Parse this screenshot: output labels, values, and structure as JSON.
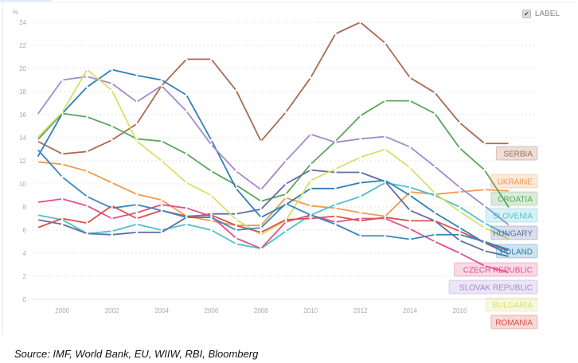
{
  "legend_toggle": {
    "label": "LABEL",
    "checked": true
  },
  "source": "Source: IMF, World Bank, EU, WIIW, RBI, Bloomberg",
  "chart_data": {
    "type": "line",
    "ylabel": "%",
    "ylim": [
      0,
      24
    ],
    "yticks": [
      0,
      2,
      4,
      6,
      8,
      10,
      12,
      14,
      16,
      18,
      20,
      22,
      24
    ],
    "xticks": [
      2000,
      2002,
      2004,
      2006,
      2008,
      2010,
      2012,
      2014,
      2016
    ],
    "grid": true,
    "legend": "right, labels at line ends",
    "x": [
      1999,
      2000,
      2001,
      2002,
      2003,
      2004,
      2005,
      2006,
      2007,
      2008,
      2009,
      2010,
      2011,
      2012,
      2013,
      2014,
      2015,
      2016,
      2017,
      2018
    ],
    "series": [
      {
        "name": "SERBIA",
        "color": "#a86b52",
        "values": [
          13.7,
          12.6,
          12.8,
          13.8,
          15.2,
          18.5,
          20.8,
          20.8,
          18.1,
          13.7,
          16.2,
          19.2,
          23.0,
          24.0,
          22.2,
          19.2,
          17.9,
          15.3,
          13.5,
          13.5
        ]
      },
      {
        "name": "UKRAINE",
        "color": "#f19a4e",
        "values": [
          11.9,
          11.7,
          11.1,
          10.1,
          9.1,
          8.6,
          7.2,
          6.8,
          6.4,
          6.4,
          8.8,
          8.1,
          7.9,
          7.5,
          7.2,
          9.3,
          9.1,
          9.3,
          9.5,
          9.4
        ]
      },
      {
        "name": "CROATIA",
        "color": "#5aa65a",
        "values": [
          13.8,
          16.1,
          15.8,
          15.0,
          13.9,
          13.7,
          12.6,
          11.1,
          9.9,
          8.5,
          9.1,
          11.7,
          13.7,
          15.9,
          17.2,
          17.2,
          16.1,
          13.1,
          11.2,
          7.9
        ]
      },
      {
        "name": "SLOVENIA",
        "color": "#4cc1cc",
        "values": [
          7.3,
          6.9,
          5.7,
          5.9,
          6.5,
          6.0,
          6.5,
          6.0,
          4.8,
          4.4,
          5.9,
          7.3,
          8.2,
          8.9,
          10.1,
          9.7,
          9.0,
          8.0,
          6.6,
          5.5
        ]
      },
      {
        "name": "HUNGARY",
        "color": "#5c6ea6",
        "values": [
          6.9,
          6.5,
          5.7,
          5.6,
          5.8,
          5.8,
          7.1,
          7.4,
          7.4,
          7.8,
          10.0,
          11.2,
          11.0,
          11.0,
          10.2,
          7.7,
          6.8,
          5.1,
          4.2,
          3.7
        ]
      },
      {
        "name": "POLAND",
        "color": "#2f7fb8",
        "values": [
          12.3,
          16.1,
          18.4,
          19.9,
          19.4,
          19.0,
          17.7,
          13.8,
          9.6,
          7.1,
          8.2,
          9.6,
          9.6,
          10.1,
          10.3,
          9.0,
          7.5,
          6.2,
          4.9,
          3.9
        ]
      },
      {
        "name": "CZECH REPUBLIC",
        "color": "#e2508a",
        "values": [
          8.4,
          8.7,
          8.1,
          7.0,
          7.5,
          8.2,
          7.9,
          7.2,
          5.3,
          4.4,
          6.7,
          7.3,
          6.7,
          7.0,
          7.0,
          6.1,
          5.0,
          4.0,
          2.9,
          2.3
        ]
      },
      {
        "name": "SLOVAK REPUBLIC",
        "color": "#a48ad0",
        "values": [
          16.0,
          19.0,
          19.3,
          18.7,
          17.1,
          18.5,
          16.3,
          13.4,
          11.1,
          9.5,
          12.0,
          14.3,
          13.6,
          13.9,
          14.1,
          13.2,
          11.5,
          9.7,
          8.1,
          6.4
        ]
      },
      {
        "name": "BULGARIA",
        "color": "#d9df6a",
        "values": [
          14.0,
          16.2,
          19.9,
          18.1,
          13.7,
          12.0,
          10.1,
          9.0,
          6.9,
          5.6,
          6.8,
          10.3,
          11.3,
          12.3,
          13.0,
          11.4,
          9.2,
          7.6,
          6.2,
          5.2
        ]
      },
      {
        "name": "ROMANIA",
        "color": "#d9534a",
        "values": [
          6.2,
          7.0,
          6.6,
          8.1,
          7.0,
          7.7,
          7.2,
          7.3,
          6.4,
          5.8,
          6.9,
          7.0,
          7.2,
          6.8,
          7.1,
          6.8,
          6.8,
          5.9,
          4.9,
          4.2
        ]
      },
      {
        "color": "#3a86c0",
        "values": [
          13.0,
          10.6,
          8.9,
          7.9,
          8.2,
          7.7,
          7.1,
          7.1,
          6.0,
          6.2,
          8.3,
          7.3,
          6.5,
          5.5,
          5.5,
          5.2,
          5.6,
          5.6,
          5.0,
          4.3
        ]
      }
    ]
  }
}
